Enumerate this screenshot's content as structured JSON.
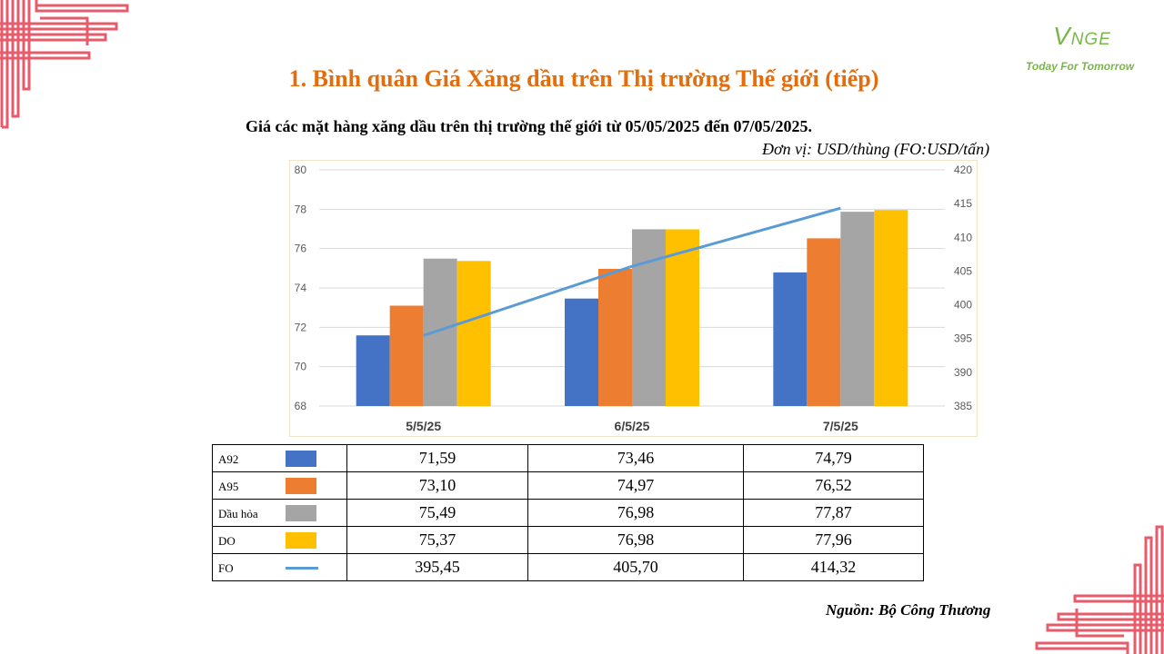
{
  "page": {
    "title": "1. Bình quân Giá Xăng dầu trên Thị trường Thế giới (tiếp)",
    "subtitle": "Giá các mặt hàng xăng dầu trên thị trường thế giới từ 05/05/2025 đến 07/05/2025.",
    "unit": "Đơn vị:  USD/thùng (FO:USD/tấn)",
    "source": "Nguồn: Bộ Công Thương"
  },
  "logo": {
    "mark_v": "V",
    "mark_rest": "NGE",
    "tagline": "Today For Tomorrow"
  },
  "colors": {
    "title": "#e46c0a",
    "logo": "#7ab648",
    "decor": "#e75b6b"
  },
  "chart_data": {
    "type": "bar",
    "categories": [
      "5/5/25",
      "6/5/25",
      "7/5/25"
    ],
    "series": [
      {
        "name": "A92",
        "values": [
          71.59,
          73.46,
          74.79
        ],
        "color": "#4472c4",
        "axis": "left",
        "kind": "bar"
      },
      {
        "name": "A95",
        "values": [
          73.1,
          74.97,
          76.52
        ],
        "color": "#ed7d31",
        "axis": "left",
        "kind": "bar"
      },
      {
        "name": "Dầu hỏa",
        "values": [
          75.49,
          76.98,
          77.87
        ],
        "color": "#a5a5a5",
        "axis": "left",
        "kind": "bar"
      },
      {
        "name": "DO",
        "values": [
          75.37,
          76.98,
          77.96
        ],
        "color": "#ffc000",
        "axis": "left",
        "kind": "bar"
      },
      {
        "name": "FO",
        "values": [
          395.45,
          405.7,
          414.32
        ],
        "color": "#5b9bd5",
        "axis": "right",
        "kind": "line"
      }
    ],
    "ylim_left": [
      68,
      80
    ],
    "yticks_left": [
      "68",
      "70",
      "72",
      "74",
      "76",
      "78",
      "80"
    ],
    "ylim_right": [
      385,
      420
    ],
    "yticks_right": [
      "385",
      "390",
      "395",
      "400",
      "405",
      "410",
      "415",
      "420"
    ],
    "grid": true,
    "legend": "data-table below chart"
  },
  "table": {
    "rows": [
      {
        "label": "A92",
        "values": [
          "71,59",
          "73,46",
          "74,79"
        ]
      },
      {
        "label": "A95",
        "values": [
          "73,10",
          "74,97",
          "76,52"
        ]
      },
      {
        "label": "Dầu hỏa",
        "values": [
          "75,49",
          "76,98",
          "77,87"
        ]
      },
      {
        "label": "DO",
        "values": [
          "75,37",
          "76,98",
          "77,96"
        ]
      },
      {
        "label": "FO",
        "values": [
          "395,45",
          "405,70",
          "414,32"
        ]
      }
    ]
  }
}
